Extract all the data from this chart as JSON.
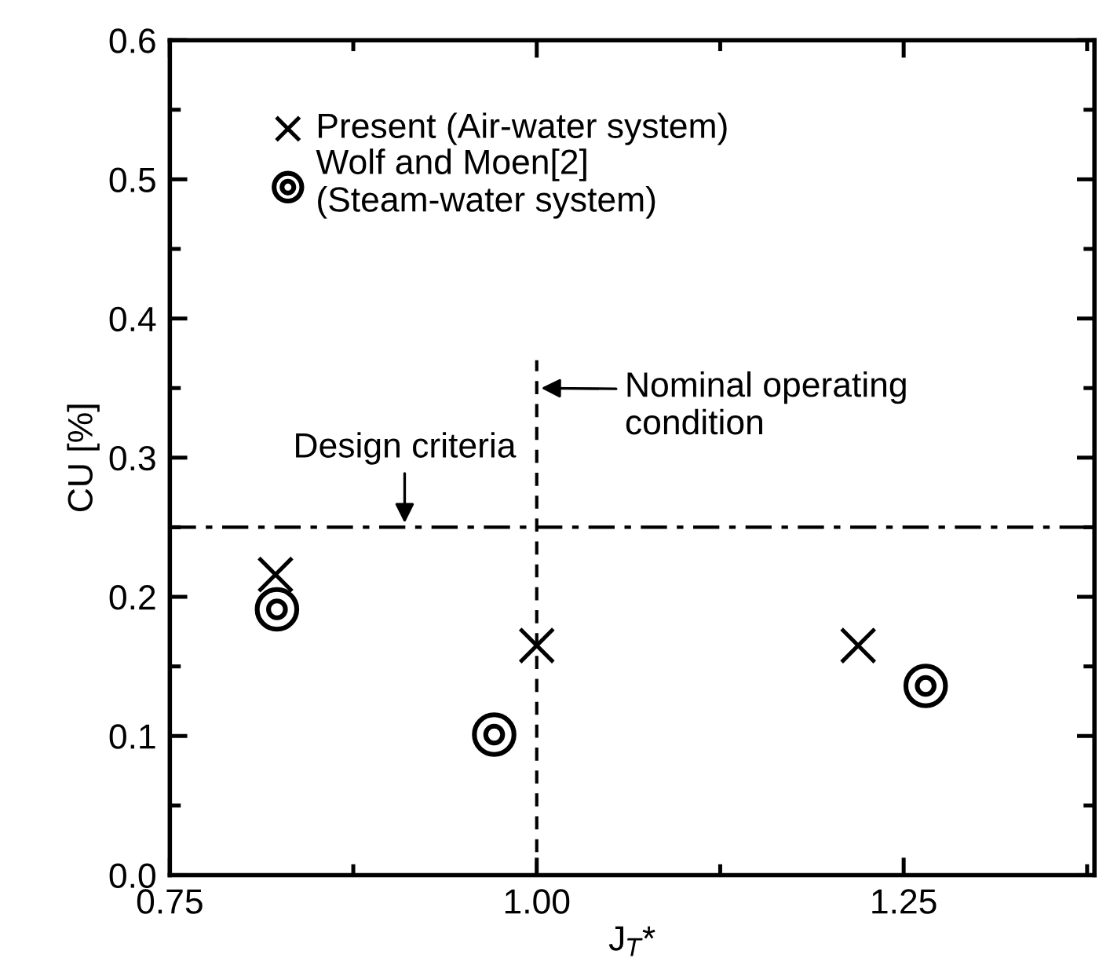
{
  "chart_data": {
    "type": "scatter",
    "xlabel": "J$_{T}$*",
    "ylabel": "CU [%]",
    "xlim": [
      0.75,
      1.38
    ],
    "xticks": [
      {
        "value": 0.75,
        "label": "0.75"
      },
      {
        "value": 0.875,
        "label": null
      },
      {
        "value": 1.0,
        "label": "1.00"
      },
      {
        "value": 1.125,
        "label": null
      },
      {
        "value": 1.25,
        "label": "1.25"
      },
      {
        "value": 1.375,
        "label": null
      }
    ],
    "ylim": [
      0,
      0.6
    ],
    "yticks": [
      {
        "value": 0,
        "label": "0.0"
      },
      {
        "value": 0.05,
        "label": null
      },
      {
        "value": 0.1,
        "label": "0.1"
      },
      {
        "value": 0.15,
        "label": null
      },
      {
        "value": 0.2,
        "label": "0.2"
      },
      {
        "value": 0.25,
        "label": null
      },
      {
        "value": 0.3,
        "label": "0.3"
      },
      {
        "value": 0.35,
        "label": null
      },
      {
        "value": 0.4,
        "label": "0.4"
      },
      {
        "value": 0.45,
        "label": null
      },
      {
        "value": 0.5,
        "label": "0.5"
      },
      {
        "value": 0.55,
        "label": null
      },
      {
        "value": 0.6,
        "label": "0.6"
      }
    ],
    "series": [
      {
        "name": "Present (Air-water system)",
        "color": "#000000",
        "marker": "cross",
        "x": [
          0.822,
          1.0,
          1.219
        ],
        "values": [
          0.216,
          0.165,
          0.165
        ]
      },
      {
        "name": "Wolf and Moen[2]\n(Steam-water system)",
        "color": "#000000",
        "marker": "circle",
        "x": [
          0.823,
          0.971,
          1.265
        ],
        "values": [
          0.191,
          0.101,
          0.136
        ]
      },
      {
        "type": "line",
        "color": "#000000",
        "line_style": "dashed",
        "marker": "none",
        "x": [
          1.0,
          1.0
        ],
        "values": [
          0,
          0.37
        ]
      }
    ],
    "ref_lines": [
      {
        "axis": "y",
        "value": 0.25,
        "color": "#000000",
        "line_style": "dashdot"
      }
    ],
    "annotations": [
      {
        "text": "Design criteria",
        "x": 0.91,
        "y": 0.25
      },
      {
        "text": "Nominal operating\ncondition",
        "x": 1.0,
        "y": 0.35
      }
    ],
    "legend": "top left",
    "grid": false
  }
}
